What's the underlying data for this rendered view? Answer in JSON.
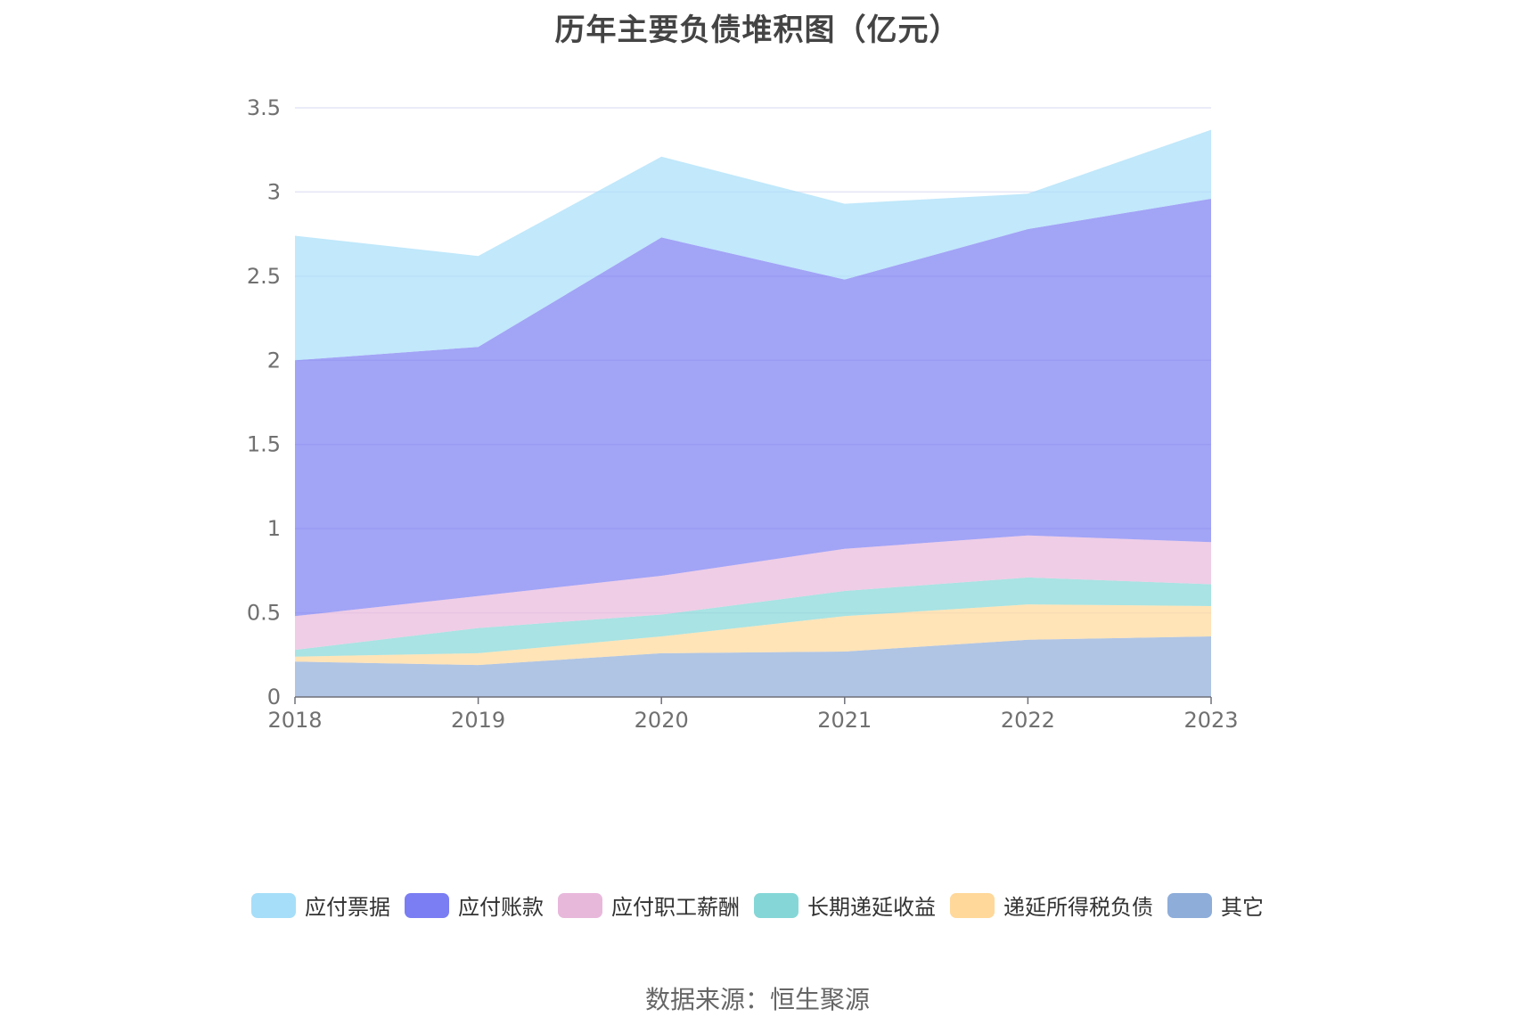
{
  "chart_data": {
    "type": "area",
    "stacked": true,
    "title": "历年主要负债堆积图（亿元）",
    "x": [
      "2018",
      "2019",
      "2020",
      "2021",
      "2022",
      "2023"
    ],
    "ylim": [
      0,
      3.5
    ],
    "yticks": [
      "0",
      "0.5",
      "1",
      "1.5",
      "2",
      "2.5",
      "3",
      "3.5"
    ],
    "grid": true,
    "legend_position": "bottom",
    "series": [
      {
        "name": "其它",
        "color": "#8eadd9",
        "values": [
          0.21,
          0.19,
          0.26,
          0.27,
          0.34,
          0.36
        ]
      },
      {
        "name": "递延所得税负债",
        "color": "#ffd89a",
        "values": [
          0.03,
          0.07,
          0.1,
          0.21,
          0.21,
          0.18
        ]
      },
      {
        "name": "长期递延收益",
        "color": "#85d7d7",
        "values": [
          0.04,
          0.15,
          0.13,
          0.15,
          0.16,
          0.13
        ]
      },
      {
        "name": "应付职工薪酬",
        "color": "#e8b8db",
        "values": [
          0.2,
          0.19,
          0.23,
          0.25,
          0.25,
          0.25
        ]
      },
      {
        "name": "应付账款",
        "color": "#7b7ef2",
        "values": [
          1.52,
          1.48,
          2.01,
          1.6,
          1.82,
          2.04
        ]
      },
      {
        "name": "应付票据",
        "color": "#a6def9",
        "values": [
          0.74,
          0.54,
          0.48,
          0.45,
          0.21,
          0.41
        ]
      }
    ]
  },
  "legend_order": [
    "应付票据",
    "应付账款",
    "应付职工薪酬",
    "长期递延收益",
    "递延所得税负债",
    "其它"
  ],
  "source_text": "数据来源：恒生聚源"
}
